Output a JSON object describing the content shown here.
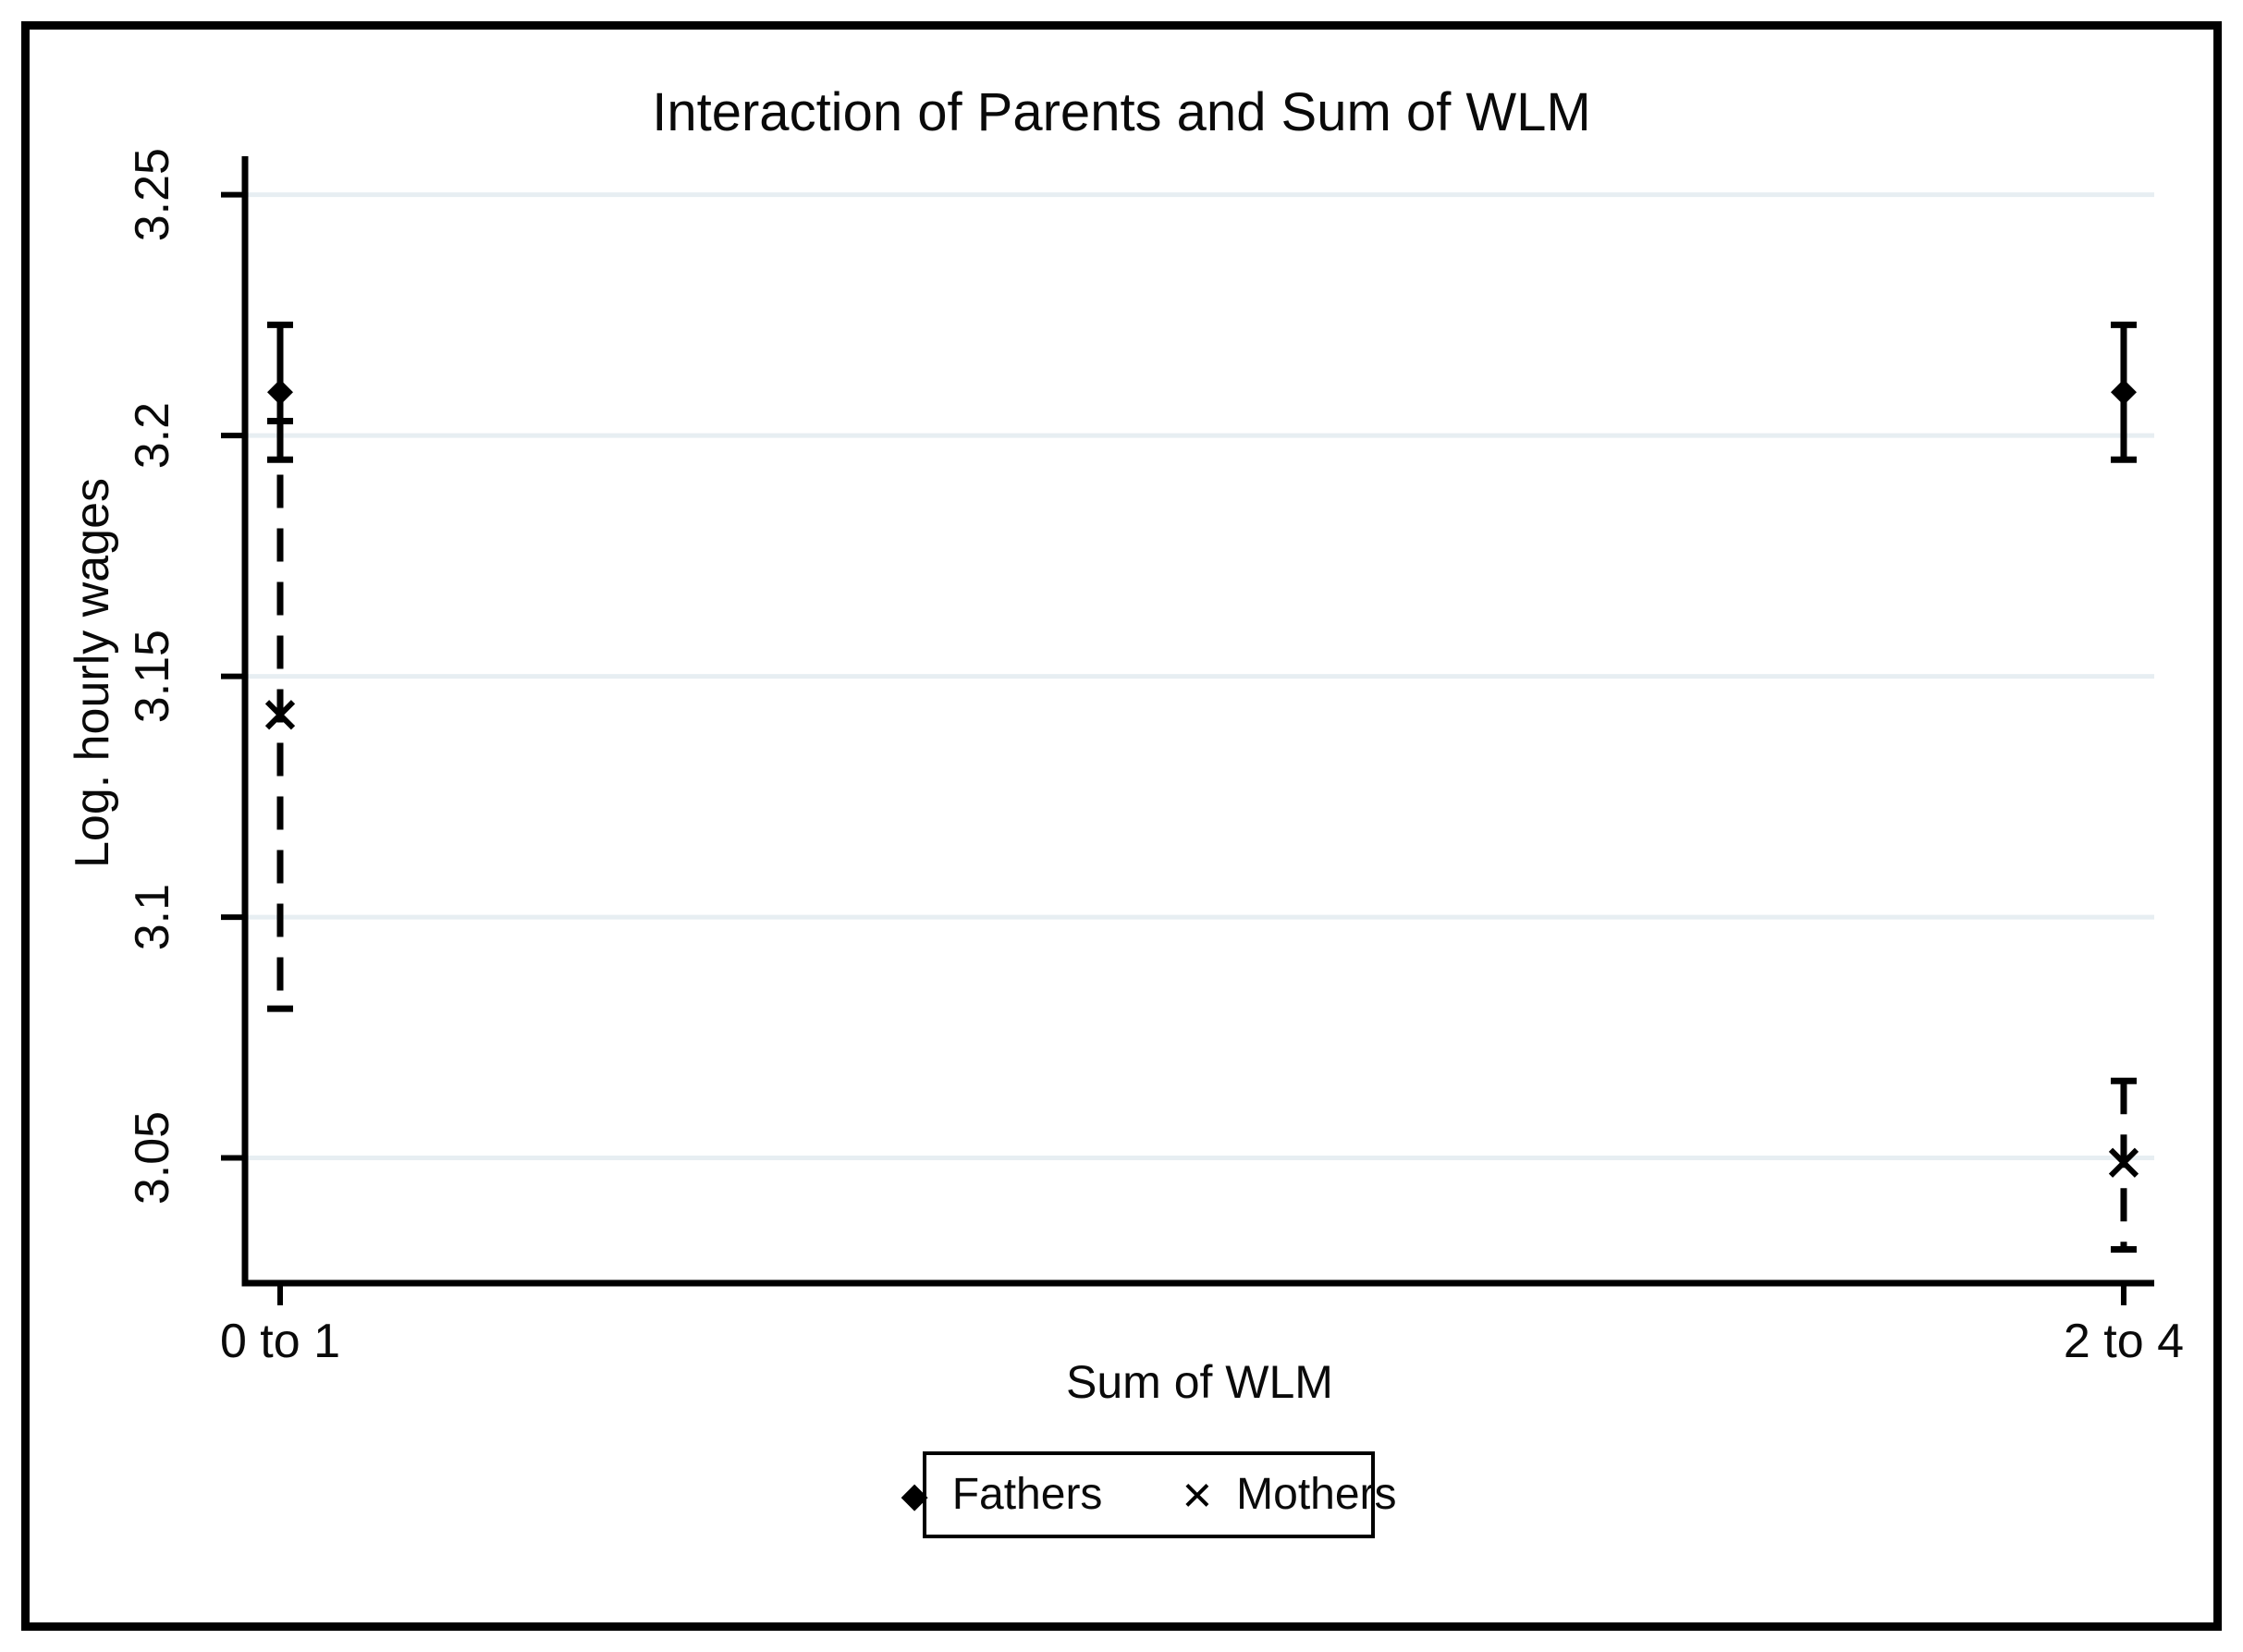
{
  "chart_data": {
    "type": "errorbar",
    "title": "Interaction of Parents and Sum of WLM",
    "xlabel": "Sum of WLM",
    "ylabel": "Log. hourly wages",
    "categories": [
      "0 to 1",
      "2 to 4"
    ],
    "ylim": [
      3.024,
      3.258
    ],
    "y_ticks": [
      3.05,
      3.1,
      3.15,
      3.2,
      3.25
    ],
    "y_tick_labels": [
      "3.05",
      "3.1",
      "3.15",
      "3.2",
      "3.25"
    ],
    "grid": true,
    "legend_position": "bottom-center",
    "series": [
      {
        "name": "Fathers",
        "marker": "diamond",
        "ci_style": "solid",
        "points": [
          {
            "category": "0 to 1",
            "value": 3.209,
            "ci_low": 3.195,
            "ci_high": 3.223
          },
          {
            "category": "2 to 4",
            "value": 3.209,
            "ci_low": 3.195,
            "ci_high": 3.223
          }
        ]
      },
      {
        "name": "Mothers",
        "marker": "x",
        "ci_style": "dashed",
        "points": [
          {
            "category": "0 to 1",
            "value": 3.142,
            "ci_low": 3.081,
            "ci_high": 3.203
          },
          {
            "category": "2 to 4",
            "value": 3.049,
            "ci_low": 3.031,
            "ci_high": 3.066
          }
        ]
      }
    ],
    "colors": {
      "marker": "#000000",
      "axis": "#000000",
      "grid": "#e7eef2",
      "text": "#0a0a0a"
    }
  },
  "legend": {
    "items": [
      {
        "label": "Fathers",
        "marker": "diamond"
      },
      {
        "label": "Mothers",
        "marker": "x"
      }
    ],
    "diamond_glyph": "◆",
    "x_glyph": "×"
  }
}
